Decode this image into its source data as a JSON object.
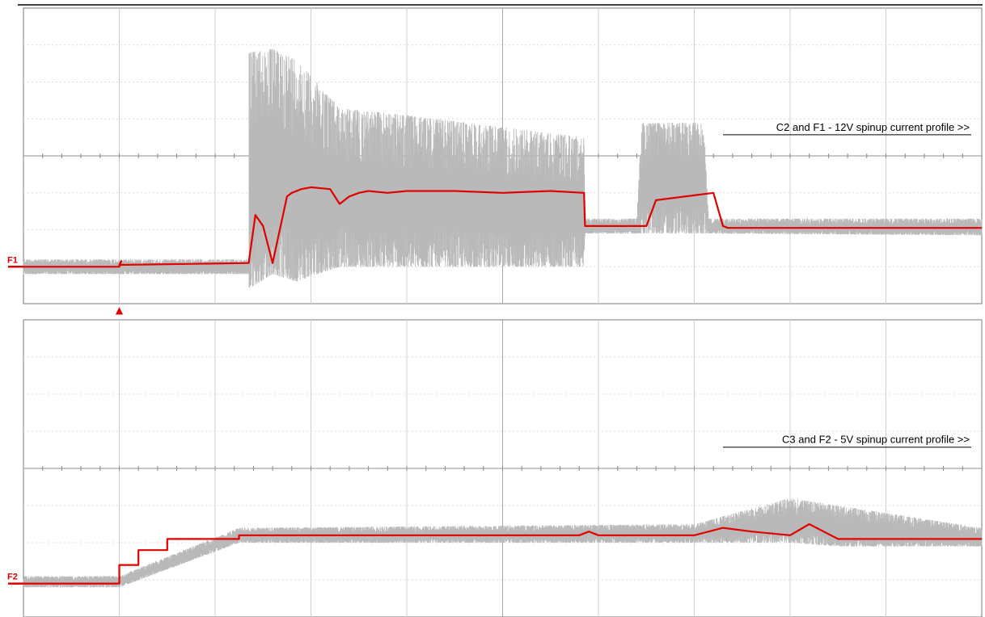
{
  "chart_data": [
    {
      "type": "line",
      "title": "",
      "xlabel": "",
      "ylabel": "",
      "grid": true,
      "grid_divisions": {
        "x": 10,
        "y": 8
      },
      "xlim": [
        0,
        10
      ],
      "ylim": [
        0,
        8
      ],
      "annotation": "C2 and F1 - 12V spinup current profile >>",
      "series": [
        {
          "name": "F1",
          "color": "#e00000",
          "x": [
            0,
            1.0,
            1.02,
            1.0,
            2.35,
            2.42,
            2.5,
            2.6,
            2.75,
            2.8,
            2.9,
            3.0,
            3.2,
            3.3,
            3.4,
            3.5,
            3.6,
            3.8,
            4.0,
            4.5,
            5.0,
            5.5,
            5.85,
            5.86,
            5.9,
            6.5,
            6.6,
            7.2,
            7.3,
            7.35,
            7.5,
            8.0,
            10.0
          ],
          "values": [
            1.0,
            1.0,
            1.15,
            1.05,
            1.1,
            2.4,
            2.1,
            1.1,
            2.9,
            3.0,
            3.1,
            3.15,
            3.1,
            2.7,
            2.9,
            3.0,
            3.05,
            3.0,
            3.05,
            3.05,
            3.0,
            3.05,
            3.0,
            2.1,
            2.1,
            2.1,
            2.8,
            3.0,
            2.1,
            2.05,
            2.05,
            2.05,
            2.05
          ]
        },
        {
          "name": "C2",
          "color": "#b9b9b9",
          "x": [
            0,
            2.35,
            2.35,
            2.6,
            2.85,
            3.3,
            4.0,
            5.85,
            5.86,
            6.4,
            6.45,
            7.1,
            7.15,
            10.0
          ],
          "min": [
            0.8,
            0.8,
            0.4,
            0.8,
            0.6,
            1.0,
            1.0,
            1.0,
            1.9,
            1.9,
            1.9,
            1.9,
            1.9,
            1.85
          ],
          "max": [
            1.2,
            1.2,
            6.8,
            6.9,
            6.6,
            5.3,
            5.1,
            4.5,
            2.3,
            2.3,
            4.9,
            4.9,
            2.3,
            2.3
          ]
        }
      ],
      "markers": {
        "trace_label": "F1",
        "trigger": "▲"
      }
    },
    {
      "type": "line",
      "title": "",
      "xlabel": "",
      "ylabel": "",
      "grid": true,
      "grid_divisions": {
        "x": 10,
        "y": 8
      },
      "xlim": [
        0,
        10
      ],
      "ylim": [
        0,
        8
      ],
      "annotation": "C3 and F2 - 5V spinup current profile >>",
      "series": [
        {
          "name": "F2",
          "color": "#e00000",
          "x": [
            0,
            1.0,
            1.0,
            1.2,
            1.2,
            1.5,
            1.5,
            2.25,
            2.25,
            5.8,
            5.9,
            6.0,
            7.0,
            7.3,
            7.6,
            8.0,
            8.2,
            8.35,
            8.5,
            10.0
          ],
          "values": [
            0.9,
            0.9,
            1.4,
            1.4,
            1.8,
            1.8,
            2.1,
            2.1,
            2.2,
            2.2,
            2.3,
            2.2,
            2.2,
            2.4,
            2.3,
            2.2,
            2.5,
            2.3,
            2.1,
            2.1
          ]
        },
        {
          "name": "C3",
          "color": "#b9b9b9",
          "x": [
            0,
            1.0,
            2.25,
            7.0,
            8.0,
            8.5,
            10.0
          ],
          "min": [
            0.8,
            0.8,
            2.0,
            2.0,
            2.0,
            1.9,
            1.9
          ],
          "max": [
            1.1,
            1.1,
            2.4,
            2.5,
            3.2,
            3.0,
            2.4
          ]
        }
      ],
      "markers": {
        "trace_label": "F2"
      }
    }
  ]
}
